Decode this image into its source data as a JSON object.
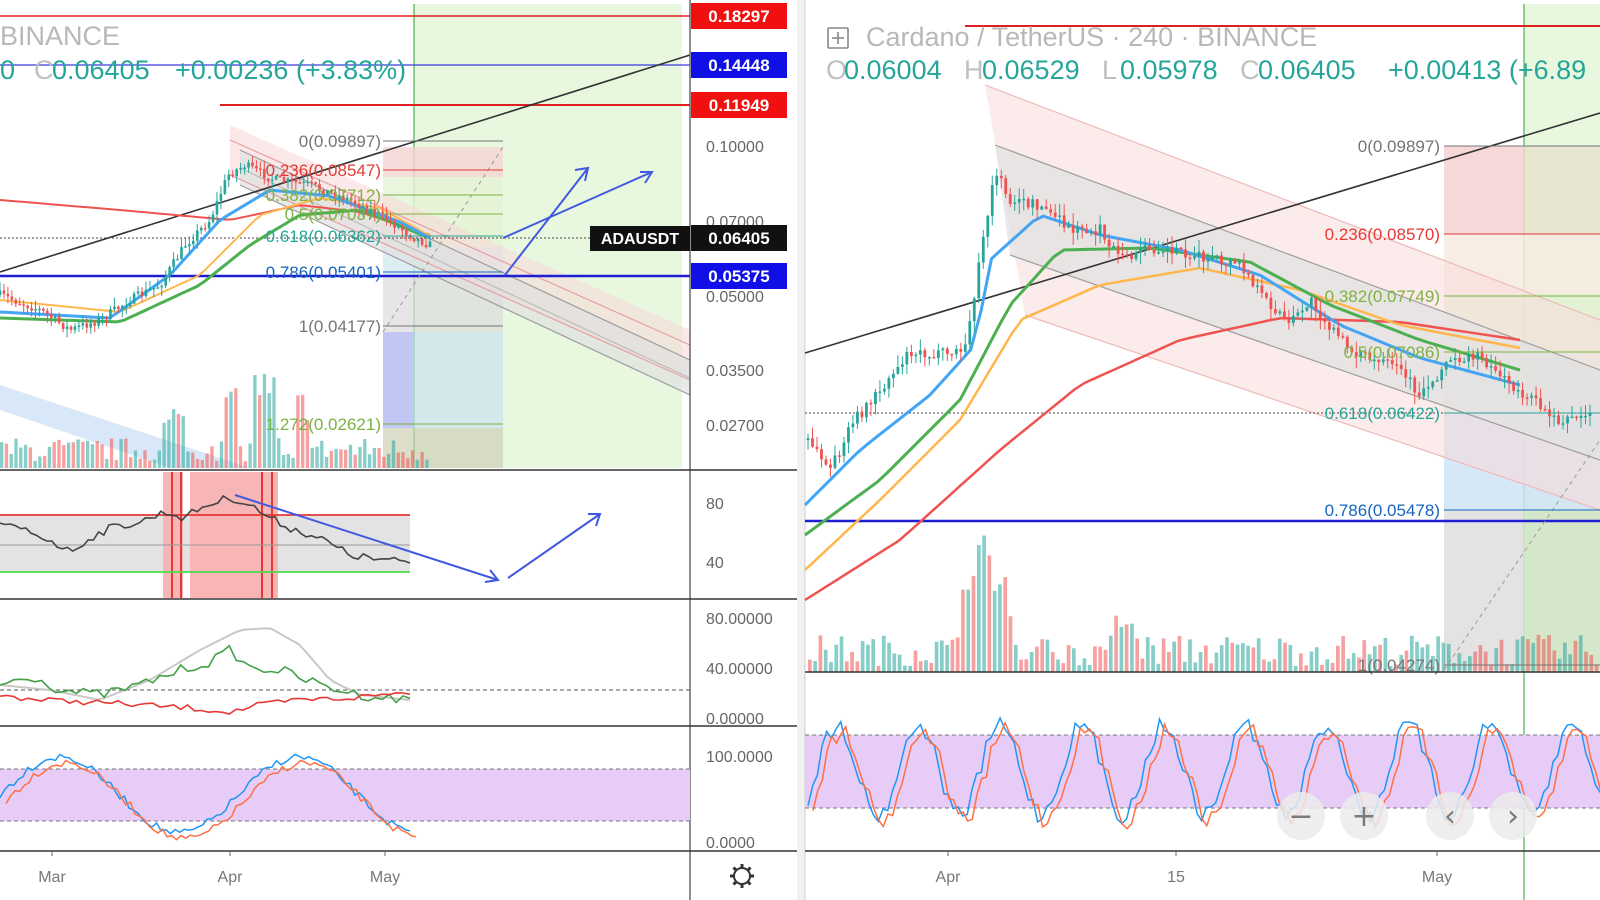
{
  "colors": {
    "up": "#26a69a",
    "down": "#ef5350",
    "ema_blue": "#42a5f5",
    "ema_green": "#4caf50",
    "ema_orange": "#ffb74d",
    "ema_red": "#ef5350",
    "trendline": "#333333",
    "hline_blue": "#1e1ed2",
    "hline_red": "#e02020",
    "arrow": "#4059e0",
    "stoch_band": "#e3c9f7",
    "green_zone": "#e6f7dc",
    "fib_gray": "#757575",
    "fib_red": "#e53935",
    "fib_green": "#7cb342",
    "fib_teal": "#26a69a",
    "fib_blue": "#1565c0"
  },
  "left": {
    "title": "BINANCE",
    "ohlc_prefix": "0 ",
    "ohlc_close_label": "C",
    "ohlc_close": "0.06405",
    "ohlc_change": "+0.00236 (+3.83%)",
    "price_axis": [
      "0.10000",
      "0.07000",
      "0.05000",
      "0.03500",
      "0.02700"
    ],
    "price_tags": [
      {
        "label": "0.18297",
        "style": "red"
      },
      {
        "label": "0.14448",
        "style": "blue"
      },
      {
        "label": "0.11949",
        "style": "red"
      },
      {
        "label": "0.06405",
        "style": "black"
      },
      {
        "label": "0.05375",
        "style": "blue"
      }
    ],
    "symbol_tag": "ADAUSDT",
    "fib_levels": [
      {
        "label": "0(0.09897)",
        "color": "gray"
      },
      {
        "label": "0.236(0.08547)",
        "color": "red"
      },
      {
        "label": "0.382(0.07712)",
        "color": "green"
      },
      {
        "label": "0.5(0.07037)",
        "color": "green"
      },
      {
        "label": "0.618(0.06362)",
        "color": "teal"
      },
      {
        "label": "0.786(0.05401)",
        "color": "blue"
      },
      {
        "label": "1(0.04177)",
        "color": "gray"
      },
      {
        "label": "1.272(0.02621)",
        "color": "green"
      }
    ],
    "rsi_axis": [
      "80",
      "40"
    ],
    "dmi_axis": [
      "80.00000",
      "40.00000",
      "0.00000"
    ],
    "stoch_axis": [
      "100.0000",
      "0.0000"
    ],
    "time_axis": [
      "Mar",
      "Apr",
      "May"
    ],
    "settings_icon": "gear-icon"
  },
  "right": {
    "title": "Cardano / TetherUS · 240 · BINANCE",
    "expand_icon": "plus-square-icon",
    "ohlc": [
      {
        "key": "O",
        "value": "0.06004"
      },
      {
        "key": "H",
        "value": "0.06529"
      },
      {
        "key": "L",
        "value": "0.05978"
      },
      {
        "key": "C",
        "value": "0.06405"
      }
    ],
    "change": "+0.00413 (+6.89",
    "fib_levels": [
      {
        "label": "0(0.09897)",
        "color": "gray"
      },
      {
        "label": "0.236(0.08570)",
        "color": "red"
      },
      {
        "label": "0.382(0.07749)",
        "color": "green"
      },
      {
        "label": "0.5(0.07086)",
        "color": "green"
      },
      {
        "label": "0.618(0.06422)",
        "color": "teal"
      },
      {
        "label": "0.786(0.05478)",
        "color": "blue"
      },
      {
        "label": "1(0.04274)",
        "color": "gray"
      }
    ],
    "time_axis": [
      "Apr",
      "15",
      "May"
    ],
    "zoom_buttons": [
      {
        "name": "zoom-out-button",
        "glyph": "−"
      },
      {
        "name": "zoom-in-button",
        "glyph": "+"
      },
      {
        "name": "scroll-left-button",
        "glyph": "‹"
      },
      {
        "name": "scroll-right-button",
        "glyph": "›"
      }
    ]
  },
  "chart_data": [
    {
      "type": "candlestick",
      "title": "ADAUSDT · BINANCE",
      "x_ticks": [
        "Mar",
        "Apr",
        "May"
      ],
      "ylim": [
        0.025,
        0.11
      ],
      "y_scale": "log",
      "series": [
        {
          "name": "Close",
          "values": [
            0.0455,
            0.044,
            0.0455,
            0.0445,
            0.045,
            0.047,
            0.048,
            0.0495,
            0.052,
            0.056,
            0.06,
            0.068,
            0.079,
            0.092,
            0.096,
            0.093,
            0.089,
            0.086,
            0.084,
            0.08,
            0.077,
            0.074,
            0.071,
            0.069,
            0.066,
            0.0641
          ]
        }
      ]
    },
    {
      "type": "candlestick",
      "title": "Cardano / TetherUS · 240 · BINANCE",
      "x_ticks": [
        "Apr",
        "15",
        "May"
      ],
      "ylim": [
        0.04,
        0.105
      ],
      "y_scale": "log",
      "series": [
        {
          "name": "Close",
          "values": [
            0.048,
            0.047,
            0.0495,
            0.052,
            0.056,
            0.06,
            0.059,
            0.064,
            0.09,
            0.093,
            0.088,
            0.085,
            0.082,
            0.079,
            0.08,
            0.078,
            0.077,
            0.076,
            0.073,
            0.0715,
            0.07,
            0.069,
            0.068,
            0.0705,
            0.069,
            0.066,
            0.0645,
            0.0641
          ]
        }
      ]
    }
  ]
}
